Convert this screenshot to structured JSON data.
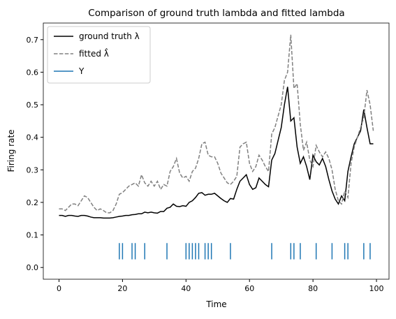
{
  "chart_data": {
    "type": "line",
    "title": "Comparison of ground truth lambda and fitted lambda",
    "xlabel": "Time",
    "ylabel": "Firing rate",
    "x": [
      0,
      1,
      2,
      3,
      4,
      5,
      6,
      7,
      8,
      9,
      10,
      11,
      12,
      13,
      14,
      15,
      16,
      17,
      18,
      19,
      20,
      21,
      22,
      23,
      24,
      25,
      26,
      27,
      28,
      29,
      30,
      31,
      32,
      33,
      34,
      35,
      36,
      37,
      38,
      39,
      40,
      41,
      42,
      43,
      44,
      45,
      46,
      47,
      48,
      49,
      50,
      51,
      52,
      53,
      54,
      55,
      56,
      57,
      58,
      59,
      60,
      61,
      62,
      63,
      64,
      65,
      66,
      67,
      68,
      69,
      70,
      71,
      72,
      73,
      74,
      75,
      76,
      77,
      78,
      79,
      80,
      81,
      82,
      83,
      84,
      85,
      86,
      87,
      88,
      89,
      90,
      91,
      92,
      93,
      94,
      95,
      96,
      97,
      98,
      99
    ],
    "series": [
      {
        "name": "ground truth λ",
        "color": "#000000",
        "linestyle": "solid",
        "values": [
          0.16,
          0.16,
          0.157,
          0.16,
          0.16,
          0.158,
          0.157,
          0.16,
          0.16,
          0.158,
          0.155,
          0.153,
          0.153,
          0.153,
          0.152,
          0.152,
          0.152,
          0.153,
          0.155,
          0.157,
          0.158,
          0.16,
          0.16,
          0.162,
          0.163,
          0.165,
          0.165,
          0.17,
          0.168,
          0.17,
          0.168,
          0.167,
          0.172,
          0.172,
          0.182,
          0.185,
          0.195,
          0.188,
          0.187,
          0.19,
          0.188,
          0.2,
          0.205,
          0.215,
          0.228,
          0.23,
          0.222,
          0.225,
          0.225,
          0.228,
          0.22,
          0.212,
          0.205,
          0.2,
          0.212,
          0.21,
          0.24,
          0.265,
          0.275,
          0.285,
          0.255,
          0.24,
          0.245,
          0.275,
          0.265,
          0.255,
          0.248,
          0.33,
          0.35,
          0.39,
          0.43,
          0.5,
          0.555,
          0.45,
          0.46,
          0.37,
          0.32,
          0.34,
          0.31,
          0.27,
          0.345,
          0.325,
          0.315,
          0.335,
          0.31,
          0.27,
          0.235,
          0.21,
          0.195,
          0.22,
          0.205,
          0.295,
          0.34,
          0.38,
          0.4,
          0.42,
          0.485,
          0.43,
          0.38,
          0.38
        ]
      },
      {
        "name": "fitted λ̂",
        "color": "#808080",
        "linestyle": "dashed",
        "values": [
          0.18,
          0.18,
          0.175,
          0.185,
          0.195,
          0.195,
          0.19,
          0.205,
          0.22,
          0.215,
          0.2,
          0.185,
          0.175,
          0.18,
          0.175,
          0.168,
          0.168,
          0.175,
          0.195,
          0.225,
          0.23,
          0.24,
          0.25,
          0.255,
          0.26,
          0.25,
          0.285,
          0.26,
          0.25,
          0.265,
          0.25,
          0.265,
          0.24,
          0.255,
          0.25,
          0.295,
          0.31,
          0.335,
          0.29,
          0.275,
          0.28,
          0.265,
          0.295,
          0.305,
          0.335,
          0.38,
          0.385,
          0.345,
          0.34,
          0.34,
          0.32,
          0.29,
          0.275,
          0.26,
          0.255,
          0.265,
          0.28,
          0.37,
          0.38,
          0.385,
          0.32,
          0.295,
          0.31,
          0.345,
          0.33,
          0.31,
          0.295,
          0.41,
          0.43,
          0.465,
          0.5,
          0.575,
          0.6,
          0.715,
          0.55,
          0.565,
          0.44,
          0.36,
          0.385,
          0.33,
          0.31,
          0.375,
          0.355,
          0.34,
          0.355,
          0.335,
          0.3,
          0.24,
          0.205,
          0.195,
          0.235,
          0.215,
          0.32,
          0.37,
          0.4,
          0.43,
          0.46,
          0.545,
          0.5,
          0.42
        ]
      },
      {
        "name": "Y",
        "color": "#1f77b4",
        "linestyle": "eventplot",
        "x": [
          19,
          20,
          23,
          24,
          27,
          34,
          40,
          41,
          42,
          43,
          44,
          46,
          47,
          48,
          54,
          67,
          73,
          74,
          76,
          81,
          86,
          90,
          91,
          96,
          98
        ],
        "lineoffset": 0.05,
        "linelength": 0.05
      }
    ],
    "xlim": [
      -4.95,
      103.95
    ],
    "xticks": [
      0,
      20,
      40,
      60,
      80,
      100
    ],
    "ylim": [
      -0.036,
      0.751
    ],
    "yticks": [
      {
        "value": 0,
        "label": "0.0"
      },
      0.1,
      0.2,
      0.3,
      0.4,
      0.5,
      0.6,
      0.7
    ],
    "legend": "upper left",
    "grid": false
  }
}
